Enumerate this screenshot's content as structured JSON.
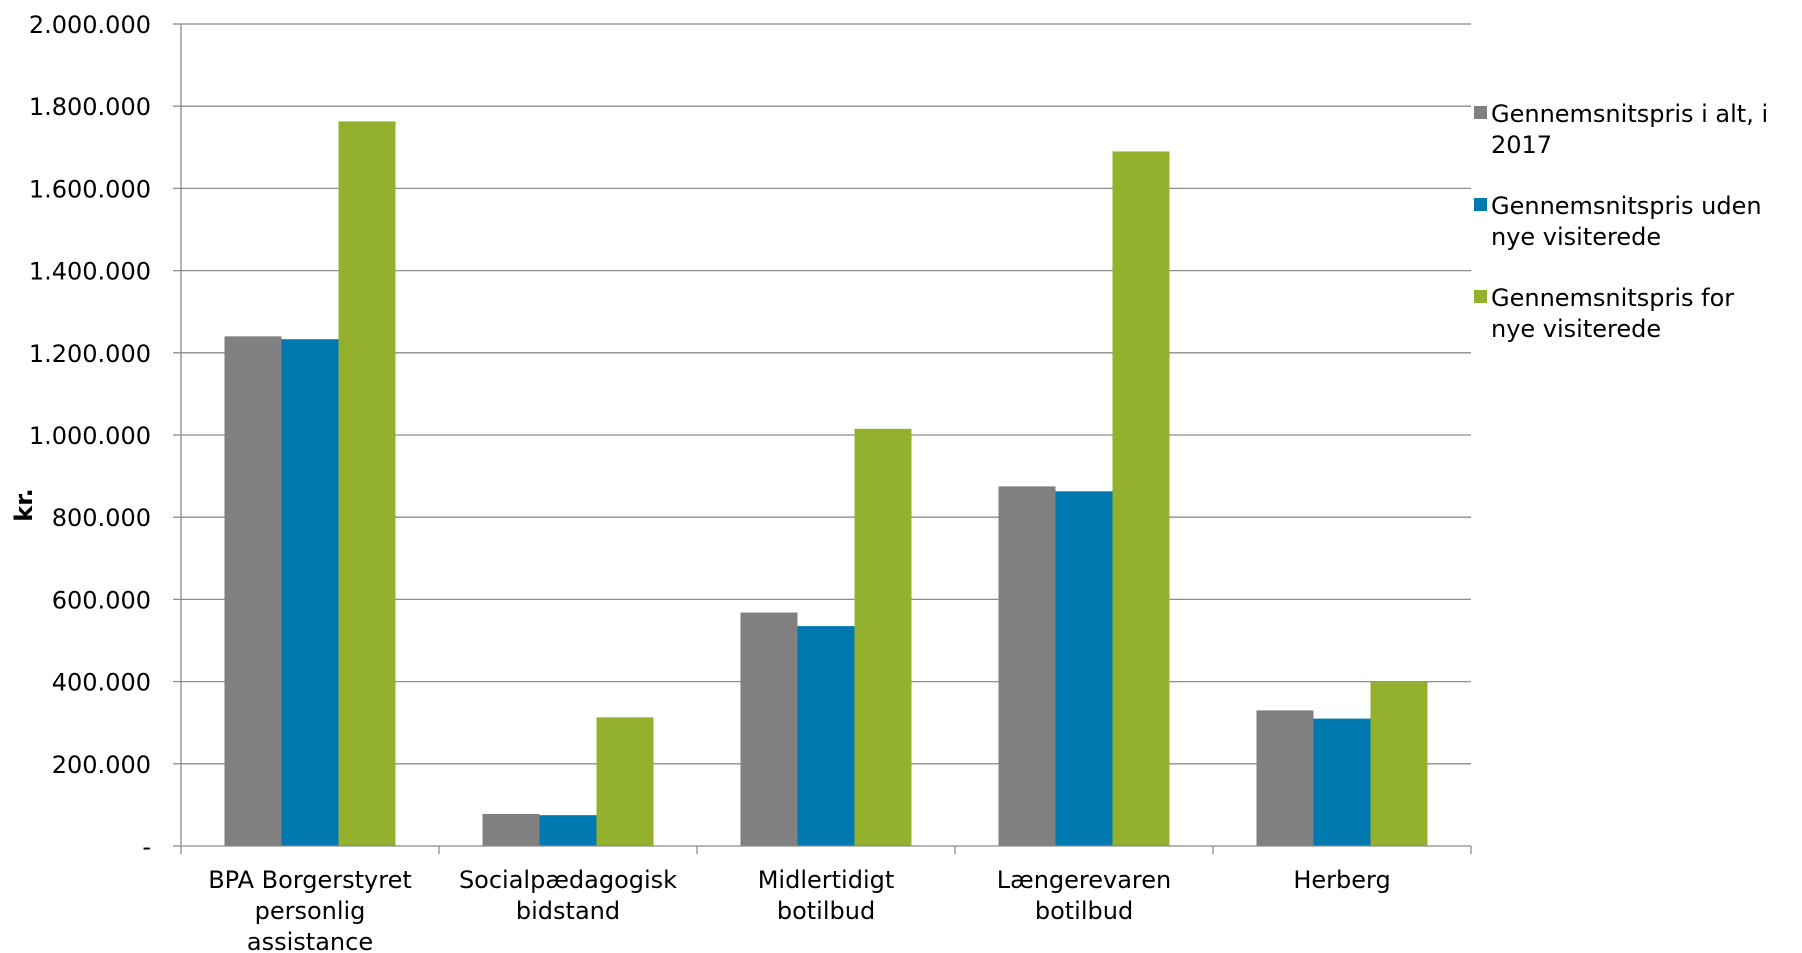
{
  "chart_data": {
    "type": "bar",
    "ylabel": "kr.",
    "xlabel": "",
    "ylim": [
      0,
      2000000
    ],
    "y_ticks": [
      {
        "value": 0,
        "label": "-"
      },
      {
        "value": 200000,
        "label": "200.000"
      },
      {
        "value": 400000,
        "label": "400.000"
      },
      {
        "value": 600000,
        "label": "600.000"
      },
      {
        "value": 800000,
        "label": "800.000"
      },
      {
        "value": 1000000,
        "label": "1.000.000"
      },
      {
        "value": 1200000,
        "label": "1.200.000"
      },
      {
        "value": 1400000,
        "label": "1.400.000"
      },
      {
        "value": 1600000,
        "label": "1.600.000"
      },
      {
        "value": 1800000,
        "label": "1.800.000"
      },
      {
        "value": 2000000,
        "label": "2.000.000"
      }
    ],
    "grid": true,
    "legend_position": "right",
    "categories": [
      [
        "BPA Borgerstyret",
        "personlig",
        "assistance"
      ],
      [
        "Socialpædagogisk",
        "bidstand"
      ],
      [
        "Midlertidigt",
        "botilbud"
      ],
      [
        "Længerevaren",
        "botilbud"
      ],
      [
        "Herberg"
      ]
    ],
    "series": [
      {
        "name": [
          "Gennemsnitspris i alt, i",
          "2017"
        ],
        "color": "#808080",
        "values": [
          1240000,
          78000,
          568000,
          875000,
          330000
        ]
      },
      {
        "name": [
          "Gennemsnitspris uden",
          "nye visiterede"
        ],
        "color": "#0079b0",
        "values": [
          1233000,
          75000,
          535000,
          863000,
          310000
        ]
      },
      {
        "name": [
          "Gennemsnitspris for",
          "nye visiterede"
        ],
        "color": "#94b12e",
        "values": [
          1763000,
          313000,
          1015000,
          1690000,
          400000
        ]
      }
    ]
  }
}
